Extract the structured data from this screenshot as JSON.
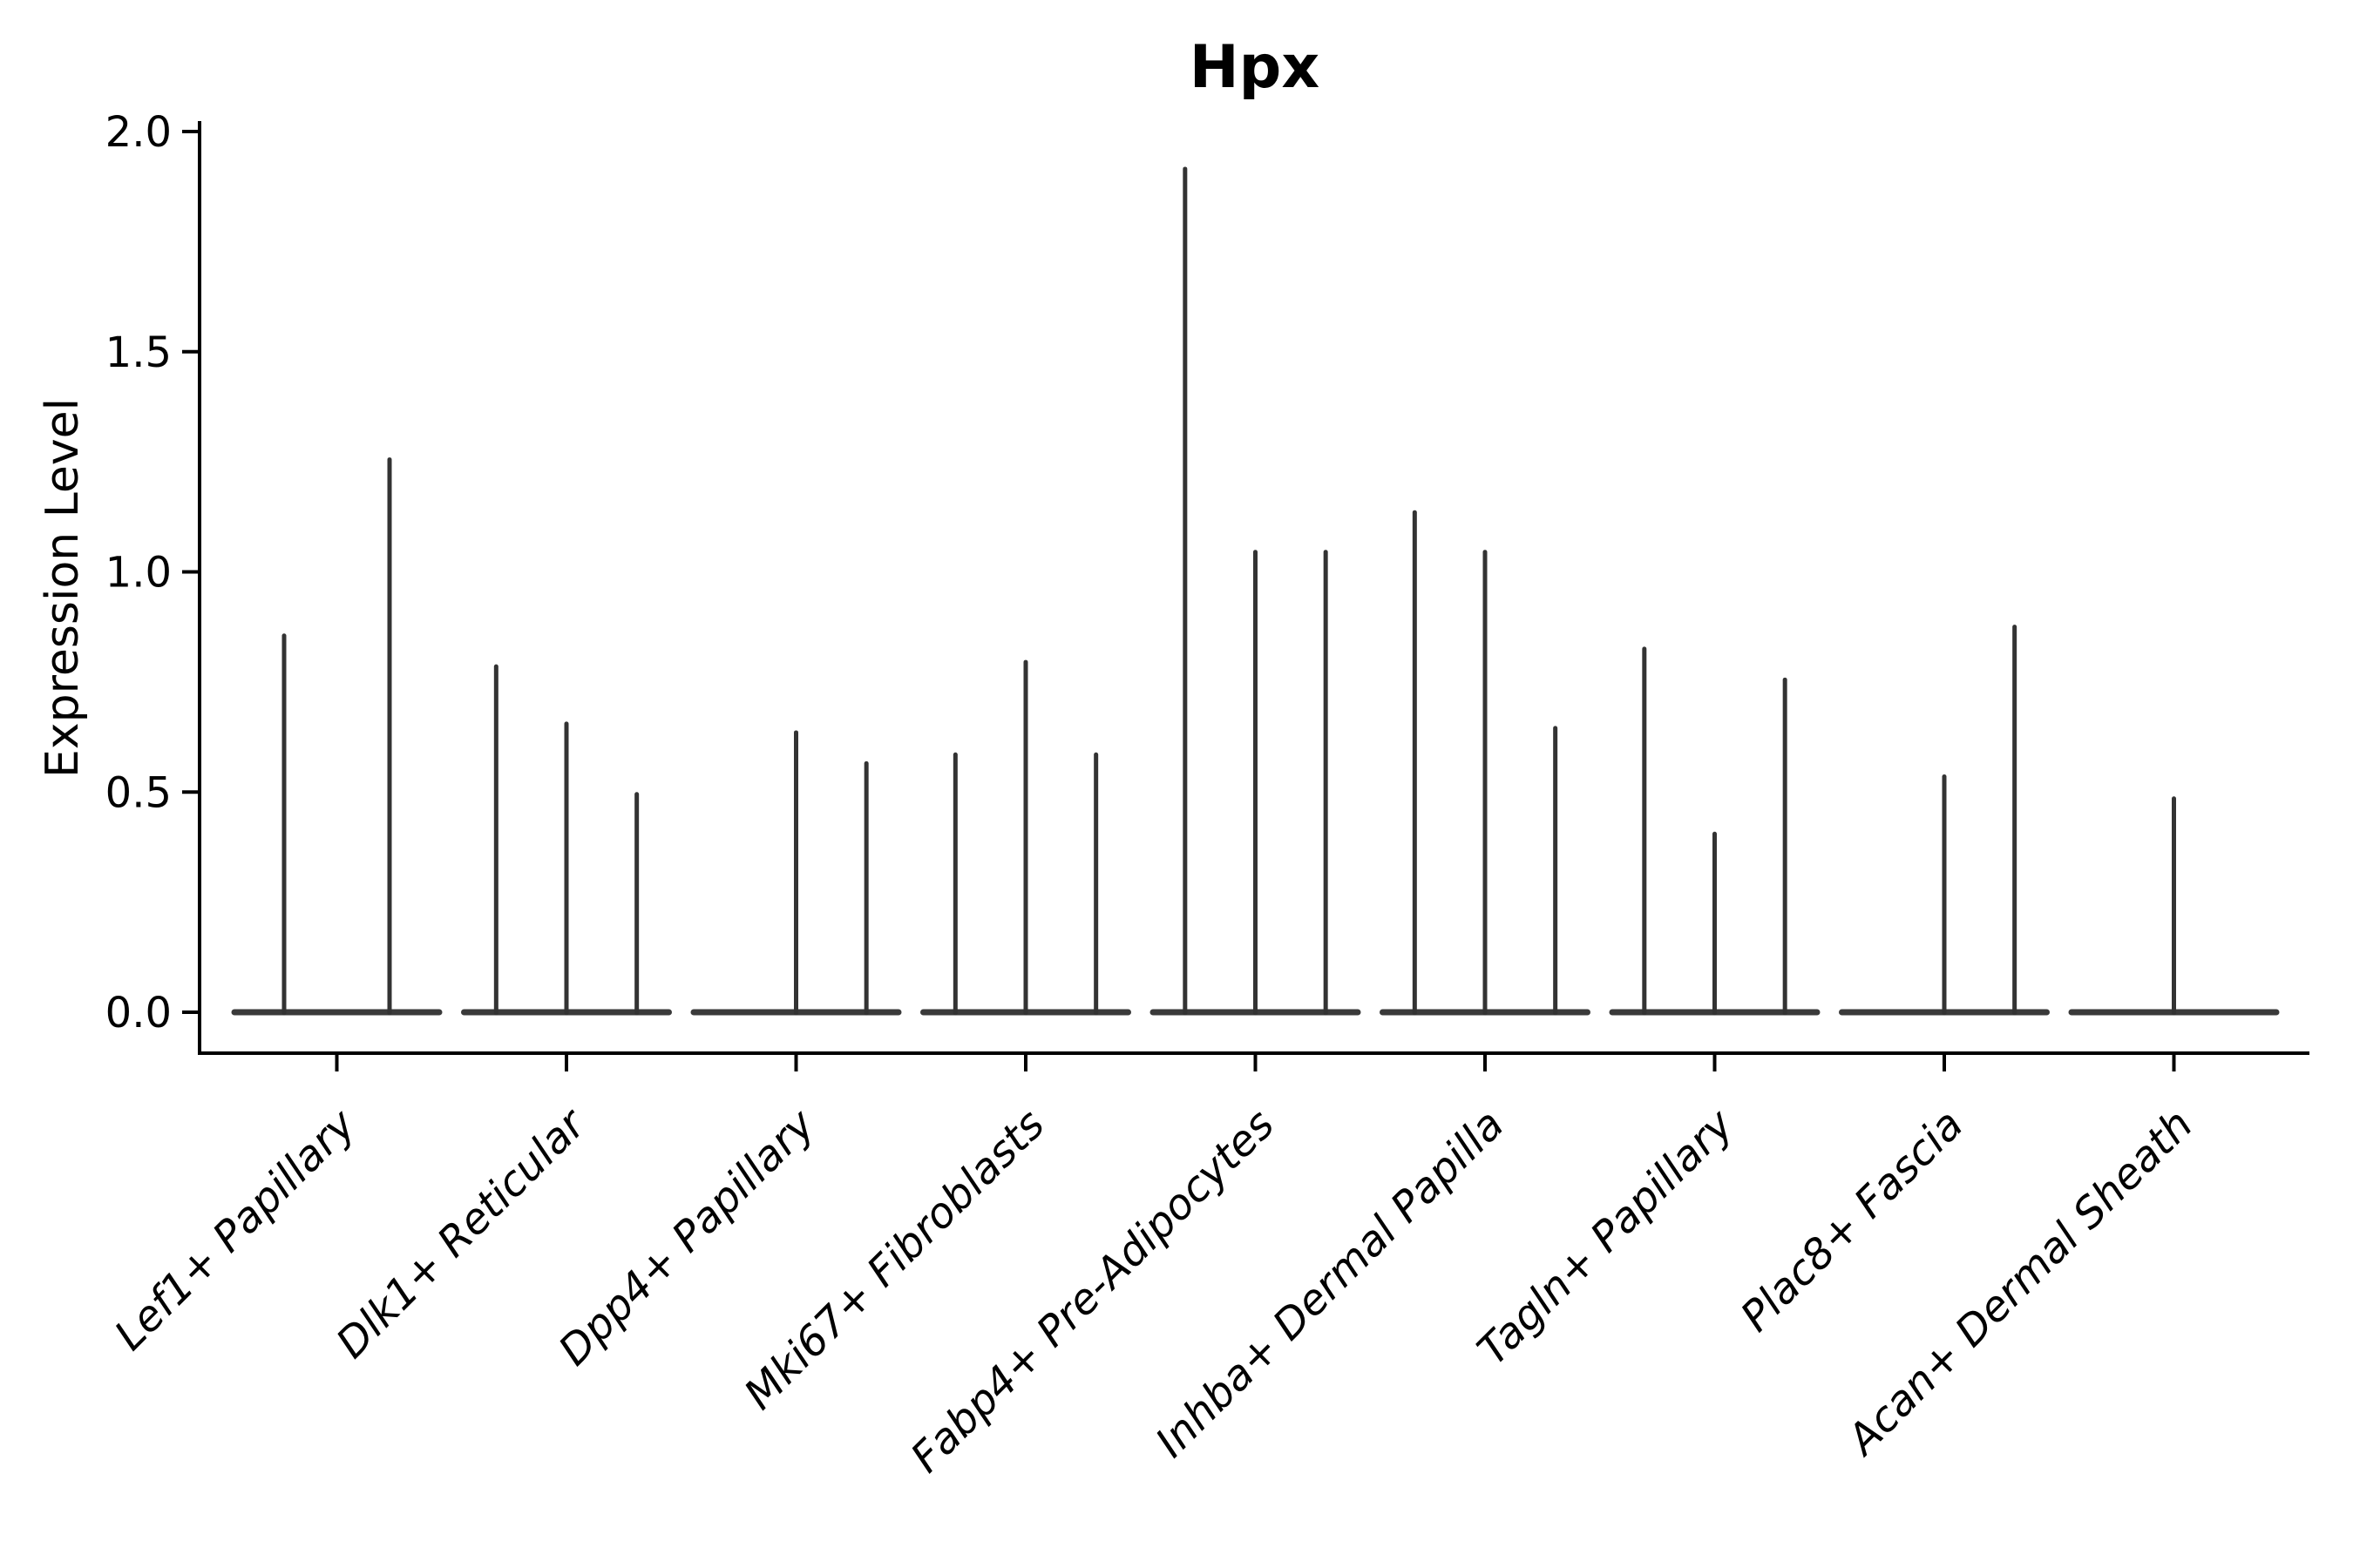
{
  "chart_data": {
    "type": "violin",
    "title": "Hpx",
    "xlabel": "",
    "ylabel": "Expression Level",
    "ylim": [
      -0.09,
      2.02
    ],
    "yticks": [
      0.0,
      0.5,
      1.0,
      1.5,
      2.0
    ],
    "ytick_labels": [
      "0.0",
      "0.5",
      "1.0",
      "1.5",
      "2.0"
    ],
    "grid": false,
    "legend": false,
    "categories": [
      "Lef1+ Papillary",
      "Dlk1+ Reticular",
      "Dpp4+ Papillary",
      "Mki67+ Fibroblasts",
      "Fabp4+ Pre-Adipocytes",
      "Inhba+ Dermal Papilla",
      "Tagln+ Papillary",
      "Plac8+ Fascia",
      "Acan+ Dermal Sheath"
    ],
    "groups": [
      {
        "category": "Lef1+ Papillary",
        "violin_slots": 2,
        "spikes": [
          {
            "slot": 0,
            "max_expression": 0.86
          },
          {
            "slot": 1,
            "max_expression": 1.26
          }
        ]
      },
      {
        "category": "Dlk1+ Reticular",
        "violin_slots": 3,
        "spikes": [
          {
            "slot": 0,
            "max_expression": 0.79
          },
          {
            "slot": 1,
            "max_expression": 0.66
          },
          {
            "slot": 2,
            "max_expression": 0.5
          }
        ]
      },
      {
        "category": "Dpp4+ Papillary",
        "violin_slots": 3,
        "spikes": [
          {
            "slot": 1,
            "max_expression": 0.64
          },
          {
            "slot": 2,
            "max_expression": 0.57
          }
        ]
      },
      {
        "category": "Mki67+ Fibroblasts",
        "violin_slots": 3,
        "spikes": [
          {
            "slot": 0,
            "max_expression": 0.59
          },
          {
            "slot": 1,
            "max_expression": 0.8
          },
          {
            "slot": 2,
            "max_expression": 0.59
          }
        ]
      },
      {
        "category": "Fabp4+ Pre-Adipocytes",
        "violin_slots": 3,
        "spikes": [
          {
            "slot": 0,
            "max_expression": 1.92
          },
          {
            "slot": 1,
            "max_expression": 1.05
          },
          {
            "slot": 2,
            "max_expression": 1.05
          }
        ]
      },
      {
        "category": "Inhba+ Dermal Papilla",
        "violin_slots": 3,
        "spikes": [
          {
            "slot": 0,
            "max_expression": 1.14
          },
          {
            "slot": 1,
            "max_expression": 1.05
          },
          {
            "slot": 2,
            "max_expression": 0.65
          }
        ]
      },
      {
        "category": "Tagln+ Papillary",
        "violin_slots": 3,
        "spikes": [
          {
            "slot": 0,
            "max_expression": 0.83
          },
          {
            "slot": 1,
            "max_expression": 0.41
          },
          {
            "slot": 2,
            "max_expression": 0.76
          }
        ]
      },
      {
        "category": "Plac8+ Fascia",
        "violin_slots": 3,
        "spikes": [
          {
            "slot": 1,
            "max_expression": 0.54
          },
          {
            "slot": 2,
            "max_expression": 0.88
          }
        ]
      },
      {
        "category": "Acan+ Dermal Sheath",
        "violin_slots": 3,
        "spikes": [
          {
            "slot": 1,
            "max_expression": 0.49
          }
        ]
      }
    ],
    "colors": {
      "violin": "#333333",
      "baseline": "#3a3a3a",
      "axis": "#000000",
      "text": "#000000",
      "background": "#ffffff"
    }
  }
}
